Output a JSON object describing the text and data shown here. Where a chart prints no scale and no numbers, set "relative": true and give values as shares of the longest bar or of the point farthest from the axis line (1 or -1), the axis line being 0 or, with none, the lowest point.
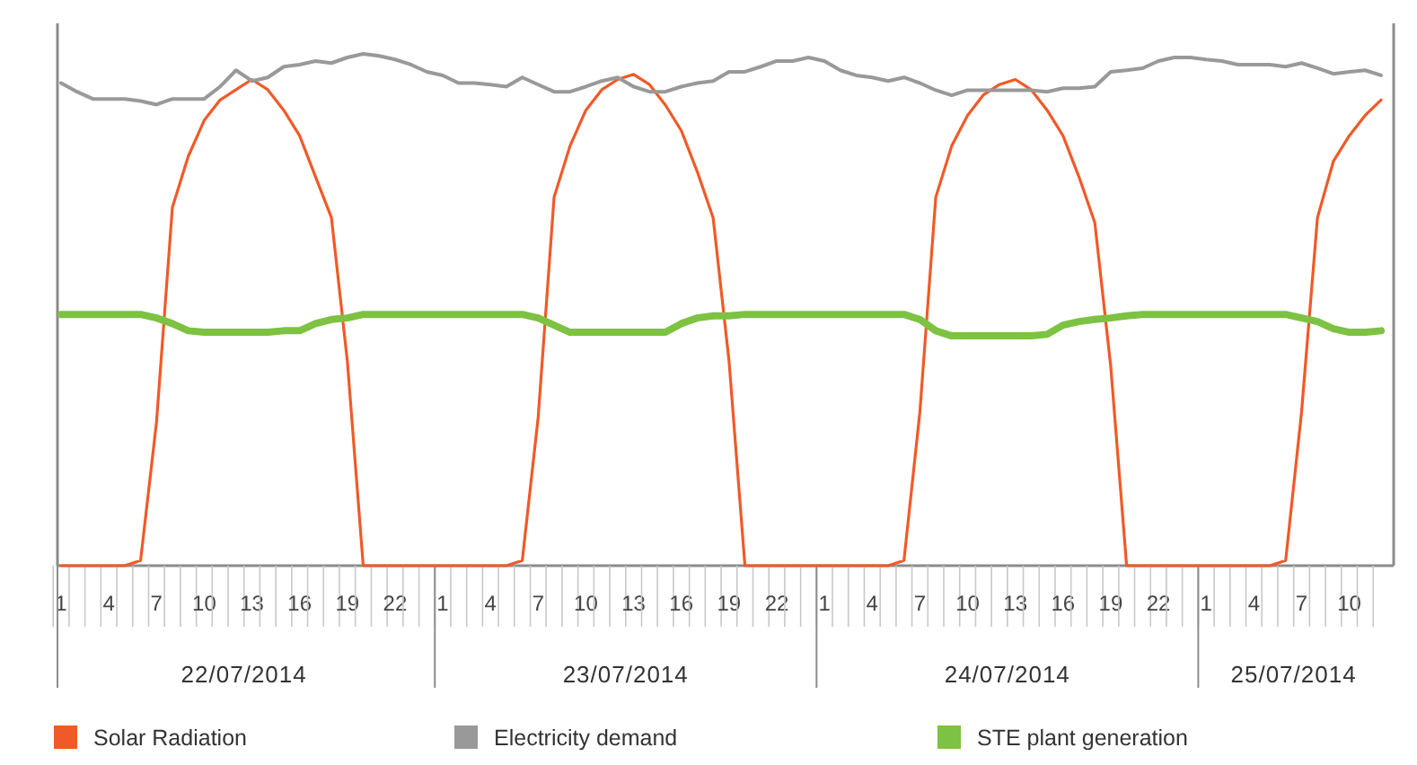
{
  "chart_data": {
    "type": "line",
    "relative": true,
    "legend": "bottom",
    "grid": false,
    "line_style": "solid",
    "categories": [
      "1",
      null,
      null,
      "4",
      null,
      null,
      "7",
      null,
      null,
      "10",
      null,
      null,
      "13",
      null,
      null,
      "16",
      null,
      null,
      "19",
      null,
      null,
      "22",
      null,
      null,
      "1",
      null,
      null,
      "4",
      null,
      null,
      "7",
      null,
      null,
      "10",
      null,
      null,
      "13",
      null,
      null,
      "16",
      null,
      null,
      "19",
      null,
      null,
      "22",
      null,
      null,
      "1",
      null,
      null,
      "4",
      null,
      null,
      "7",
      null,
      null,
      "10",
      null,
      null,
      "13",
      null,
      null,
      "16",
      null,
      null,
      "19",
      null,
      null,
      "22",
      null,
      null,
      "1",
      null,
      null,
      "4",
      null,
      null,
      "7",
      null,
      null,
      "10",
      null,
      null
    ],
    "annotations": [
      "22/07/2014",
      "23/07/2014",
      "24/07/2014",
      "25/07/2014"
    ],
    "series": [
      {
        "name": "Solar Radiation",
        "color": "#f05a28",
        "values": [
          0,
          0,
          0,
          0,
          0,
          0.01,
          0.28,
          0.7,
          0.8,
          0.87,
          0.91,
          0.93,
          0.95,
          0.93,
          0.89,
          0.84,
          0.76,
          0.68,
          0.4,
          0,
          0,
          0,
          0,
          0,
          0,
          0,
          0,
          0,
          0,
          0.01,
          0.29,
          0.72,
          0.82,
          0.89,
          0.93,
          0.95,
          0.96,
          0.94,
          0.9,
          0.85,
          0.77,
          0.68,
          0.4,
          0,
          0,
          0,
          0,
          0,
          0,
          0,
          0,
          0,
          0,
          0.01,
          0.3,
          0.72,
          0.82,
          0.88,
          0.92,
          0.94,
          0.95,
          0.93,
          0.89,
          0.84,
          0.76,
          0.67,
          0.39,
          0,
          0,
          0,
          0,
          0,
          0,
          0,
          0,
          0,
          0,
          0.01,
          0.3,
          0.68,
          0.79,
          0.84,
          0.88,
          0.91
        ]
      },
      {
        "name": "Electricity demand",
        "color": "#999999",
        "values": [
          0.943,
          0.926,
          0.912,
          0.912,
          0.912,
          0.908,
          0.901,
          0.912,
          0.912,
          0.912,
          0.936,
          0.968,
          0.947,
          0.954,
          0.975,
          0.979,
          0.986,
          0.982,
          0.993,
          1.0,
          0.996,
          0.989,
          0.979,
          0.965,
          0.958,
          0.943,
          0.943,
          0.94,
          0.936,
          0.954,
          0.94,
          0.926,
          0.926,
          0.936,
          0.947,
          0.954,
          0.936,
          0.926,
          0.926,
          0.936,
          0.943,
          0.947,
          0.965,
          0.965,
          0.975,
          0.986,
          0.986,
          0.993,
          0.986,
          0.968,
          0.958,
          0.954,
          0.947,
          0.954,
          0.943,
          0.929,
          0.919,
          0.929,
          0.929,
          0.929,
          0.929,
          0.929,
          0.926,
          0.933,
          0.933,
          0.936,
          0.965,
          0.968,
          0.972,
          0.986,
          0.993,
          0.993,
          0.989,
          0.986,
          0.979,
          0.979,
          0.979,
          0.975,
          0.982,
          0.972,
          0.961,
          0.965,
          0.968,
          0.958
        ]
      },
      {
        "name": "STE plant generation",
        "color": "#7dc242",
        "values": [
          0.491,
          0.491,
          0.491,
          0.491,
          0.491,
          0.491,
          0.484,
          0.473,
          0.459,
          0.456,
          0.456,
          0.456,
          0.456,
          0.456,
          0.459,
          0.459,
          0.473,
          0.481,
          0.484,
          0.491,
          0.491,
          0.491,
          0.491,
          0.491,
          0.491,
          0.491,
          0.491,
          0.491,
          0.491,
          0.491,
          0.484,
          0.47,
          0.456,
          0.456,
          0.456,
          0.456,
          0.456,
          0.456,
          0.456,
          0.473,
          0.484,
          0.488,
          0.488,
          0.491,
          0.491,
          0.491,
          0.491,
          0.491,
          0.491,
          0.491,
          0.491,
          0.491,
          0.491,
          0.491,
          0.481,
          0.459,
          0.449,
          0.449,
          0.449,
          0.449,
          0.449,
          0.449,
          0.452,
          0.47,
          0.477,
          0.481,
          0.484,
          0.488,
          0.491,
          0.491,
          0.491,
          0.491,
          0.491,
          0.491,
          0.491,
          0.491,
          0.491,
          0.491,
          0.484,
          0.477,
          0.463,
          0.456,
          0.456,
          0.459
        ]
      }
    ]
  }
}
